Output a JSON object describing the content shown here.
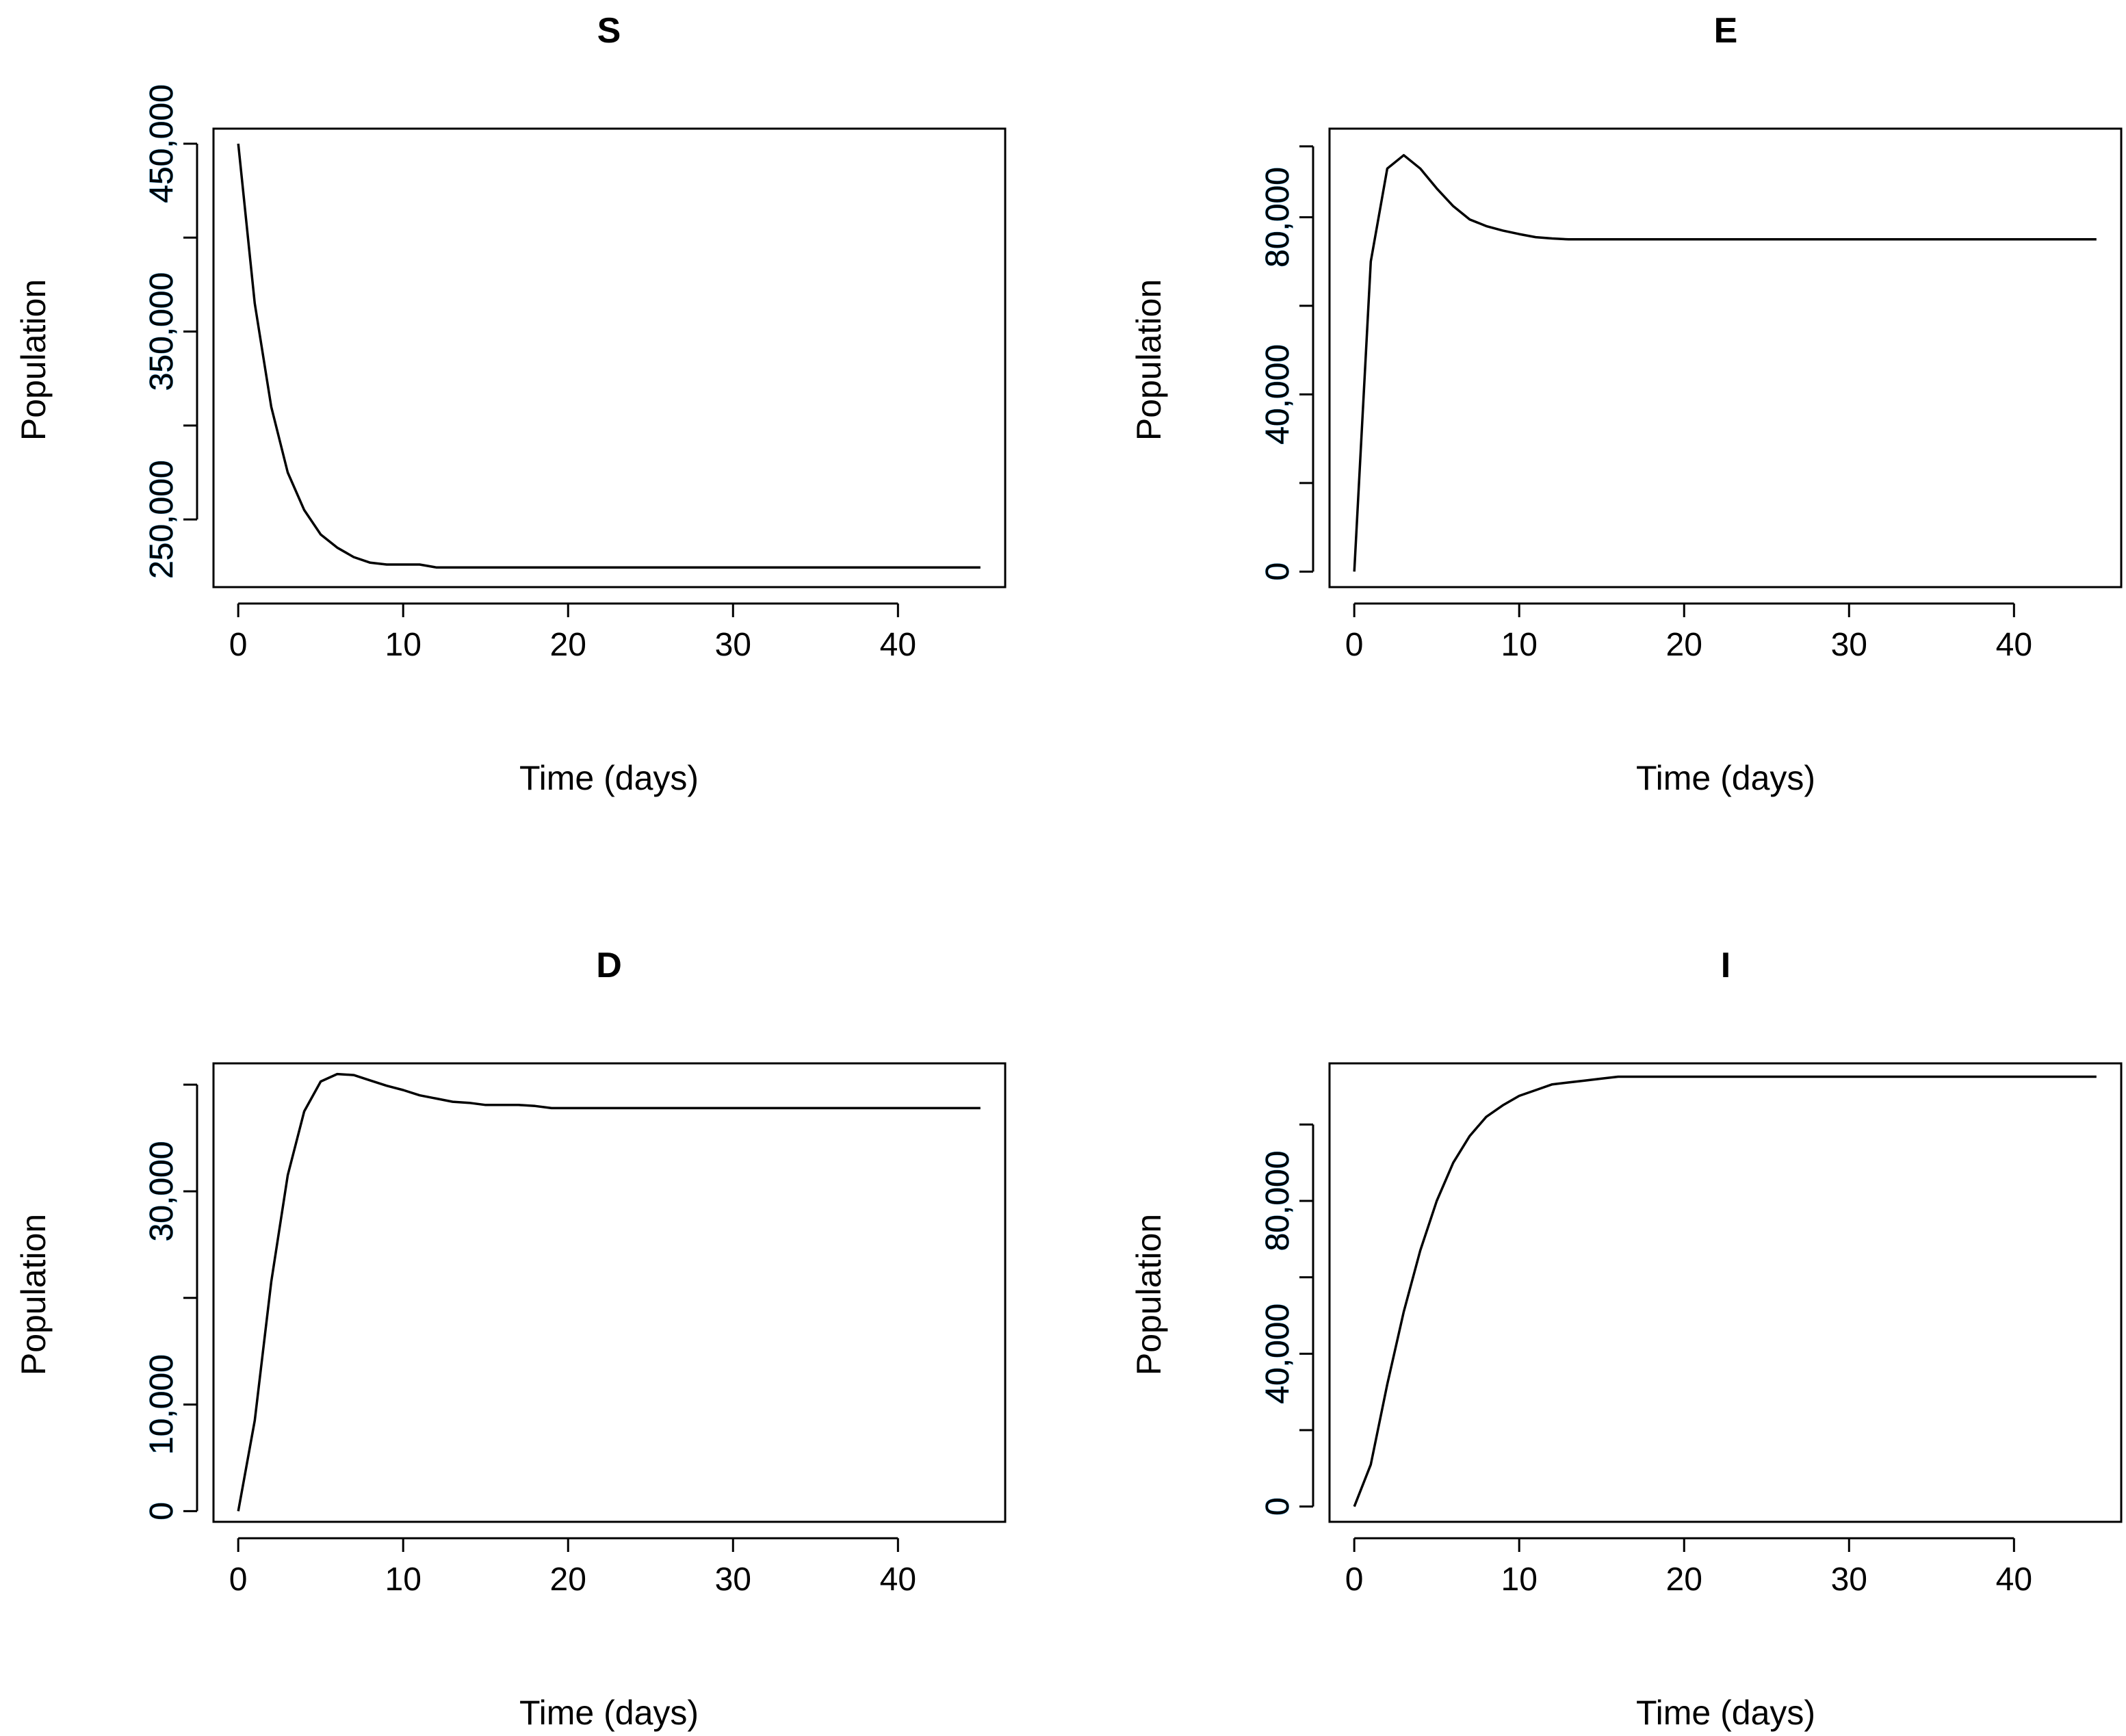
{
  "chart_data": [
    {
      "type": "line",
      "title": "S",
      "xlabel": "Time (days)",
      "ylabel": "Population",
      "xlim": [
        -1.5,
        46.5
      ],
      "ylim": [
        214000,
        458000
      ],
      "xticks": [
        0,
        10,
        20,
        30,
        40
      ],
      "xtick_labels": [
        "0",
        "10",
        "20",
        "30",
        "40"
      ],
      "yticks": [
        250000,
        300000,
        350000,
        400000,
        450000
      ],
      "ytick_labels": [
        "250,000",
        "",
        "350,000",
        "",
        "450,000"
      ],
      "series": [
        {
          "name": "S",
          "x": [
            0,
            1,
            2,
            3,
            4,
            5,
            6,
            7,
            8,
            9,
            10,
            11,
            12,
            13,
            15,
            20,
            25,
            30,
            35,
            40,
            45
          ],
          "values": [
            450000,
            365000,
            310000,
            275000,
            255000,
            242000,
            235000,
            230000,
            227000,
            226000,
            226000,
            226000,
            224500,
            224500,
            224500,
            224500,
            224500,
            224500,
            224500,
            224500,
            224500
          ]
        }
      ]
    },
    {
      "type": "line",
      "title": "E",
      "xlabel": "Time (days)",
      "ylabel": "Population",
      "xlim": [
        -1.5,
        46.5
      ],
      "ylim": [
        -3500,
        100000
      ],
      "xticks": [
        0,
        10,
        20,
        30,
        40
      ],
      "xtick_labels": [
        "0",
        "10",
        "20",
        "30",
        "40"
      ],
      "yticks": [
        0,
        20000,
        40000,
        60000,
        80000,
        96000
      ],
      "ytick_labels": [
        "0",
        "",
        "40,000",
        "",
        "80,000",
        ""
      ],
      "series": [
        {
          "name": "E",
          "x": [
            0,
            1,
            2,
            3,
            4,
            5,
            6,
            7,
            8,
            9,
            10,
            11,
            12,
            13,
            15,
            20,
            25,
            30,
            35,
            40,
            45
          ],
          "values": [
            0,
            70000,
            91000,
            94000,
            91000,
            86500,
            82500,
            79500,
            78000,
            77000,
            76200,
            75500,
            75200,
            75000,
            75000,
            75000,
            75000,
            75000,
            75000,
            75000,
            75000
          ]
        }
      ]
    },
    {
      "type": "line",
      "title": "D",
      "xlabel": "Time (days)",
      "ylabel": "Population",
      "xlim": [
        -1.5,
        46.5
      ],
      "ylim": [
        -1000,
        42000
      ],
      "xticks": [
        0,
        10,
        20,
        30,
        40
      ],
      "xtick_labels": [
        "0",
        "10",
        "20",
        "30",
        "40"
      ],
      "yticks": [
        0,
        10000,
        20000,
        30000,
        40000
      ],
      "ytick_labels": [
        "0",
        "10,000",
        "",
        "30,000",
        ""
      ],
      "series": [
        {
          "name": "D",
          "x": [
            0,
            1,
            2,
            3,
            4,
            5,
            6,
            7,
            8,
            9,
            10,
            11,
            12,
            13,
            14,
            15,
            17,
            18,
            19,
            20,
            25,
            30,
            35,
            40,
            45
          ],
          "values": [
            0,
            8500,
            21500,
            31500,
            37500,
            40300,
            41000,
            40900,
            40400,
            39900,
            39500,
            39000,
            38700,
            38400,
            38300,
            38100,
            38100,
            38000,
            37800,
            37800,
            37800,
            37800,
            37800,
            37800,
            37800
          ]
        }
      ]
    },
    {
      "type": "line",
      "title": "I",
      "xlabel": "Time (days)",
      "ylabel": "Population",
      "xlim": [
        -1.5,
        46.5
      ],
      "ylim": [
        -4000,
        116000
      ],
      "xticks": [
        0,
        10,
        20,
        30,
        40
      ],
      "xtick_labels": [
        "0",
        "10",
        "20",
        "30",
        "40"
      ],
      "yticks": [
        0,
        20000,
        40000,
        60000,
        80000,
        100000
      ],
      "ytick_labels": [
        "0",
        "",
        "40,000",
        "",
        "80,000",
        ""
      ],
      "series": [
        {
          "name": "I",
          "x": [
            0,
            1,
            2,
            3,
            4,
            5,
            6,
            7,
            8,
            9,
            10,
            11,
            12,
            13,
            14,
            15,
            16,
            20,
            25,
            30,
            35,
            40,
            45
          ],
          "values": [
            0,
            11000,
            32000,
            51000,
            67000,
            80000,
            90000,
            97000,
            102000,
            105000,
            107500,
            109000,
            110500,
            111000,
            111500,
            112000,
            112500,
            112500,
            112500,
            112500,
            112500,
            112500,
            112500
          ]
        }
      ]
    }
  ]
}
